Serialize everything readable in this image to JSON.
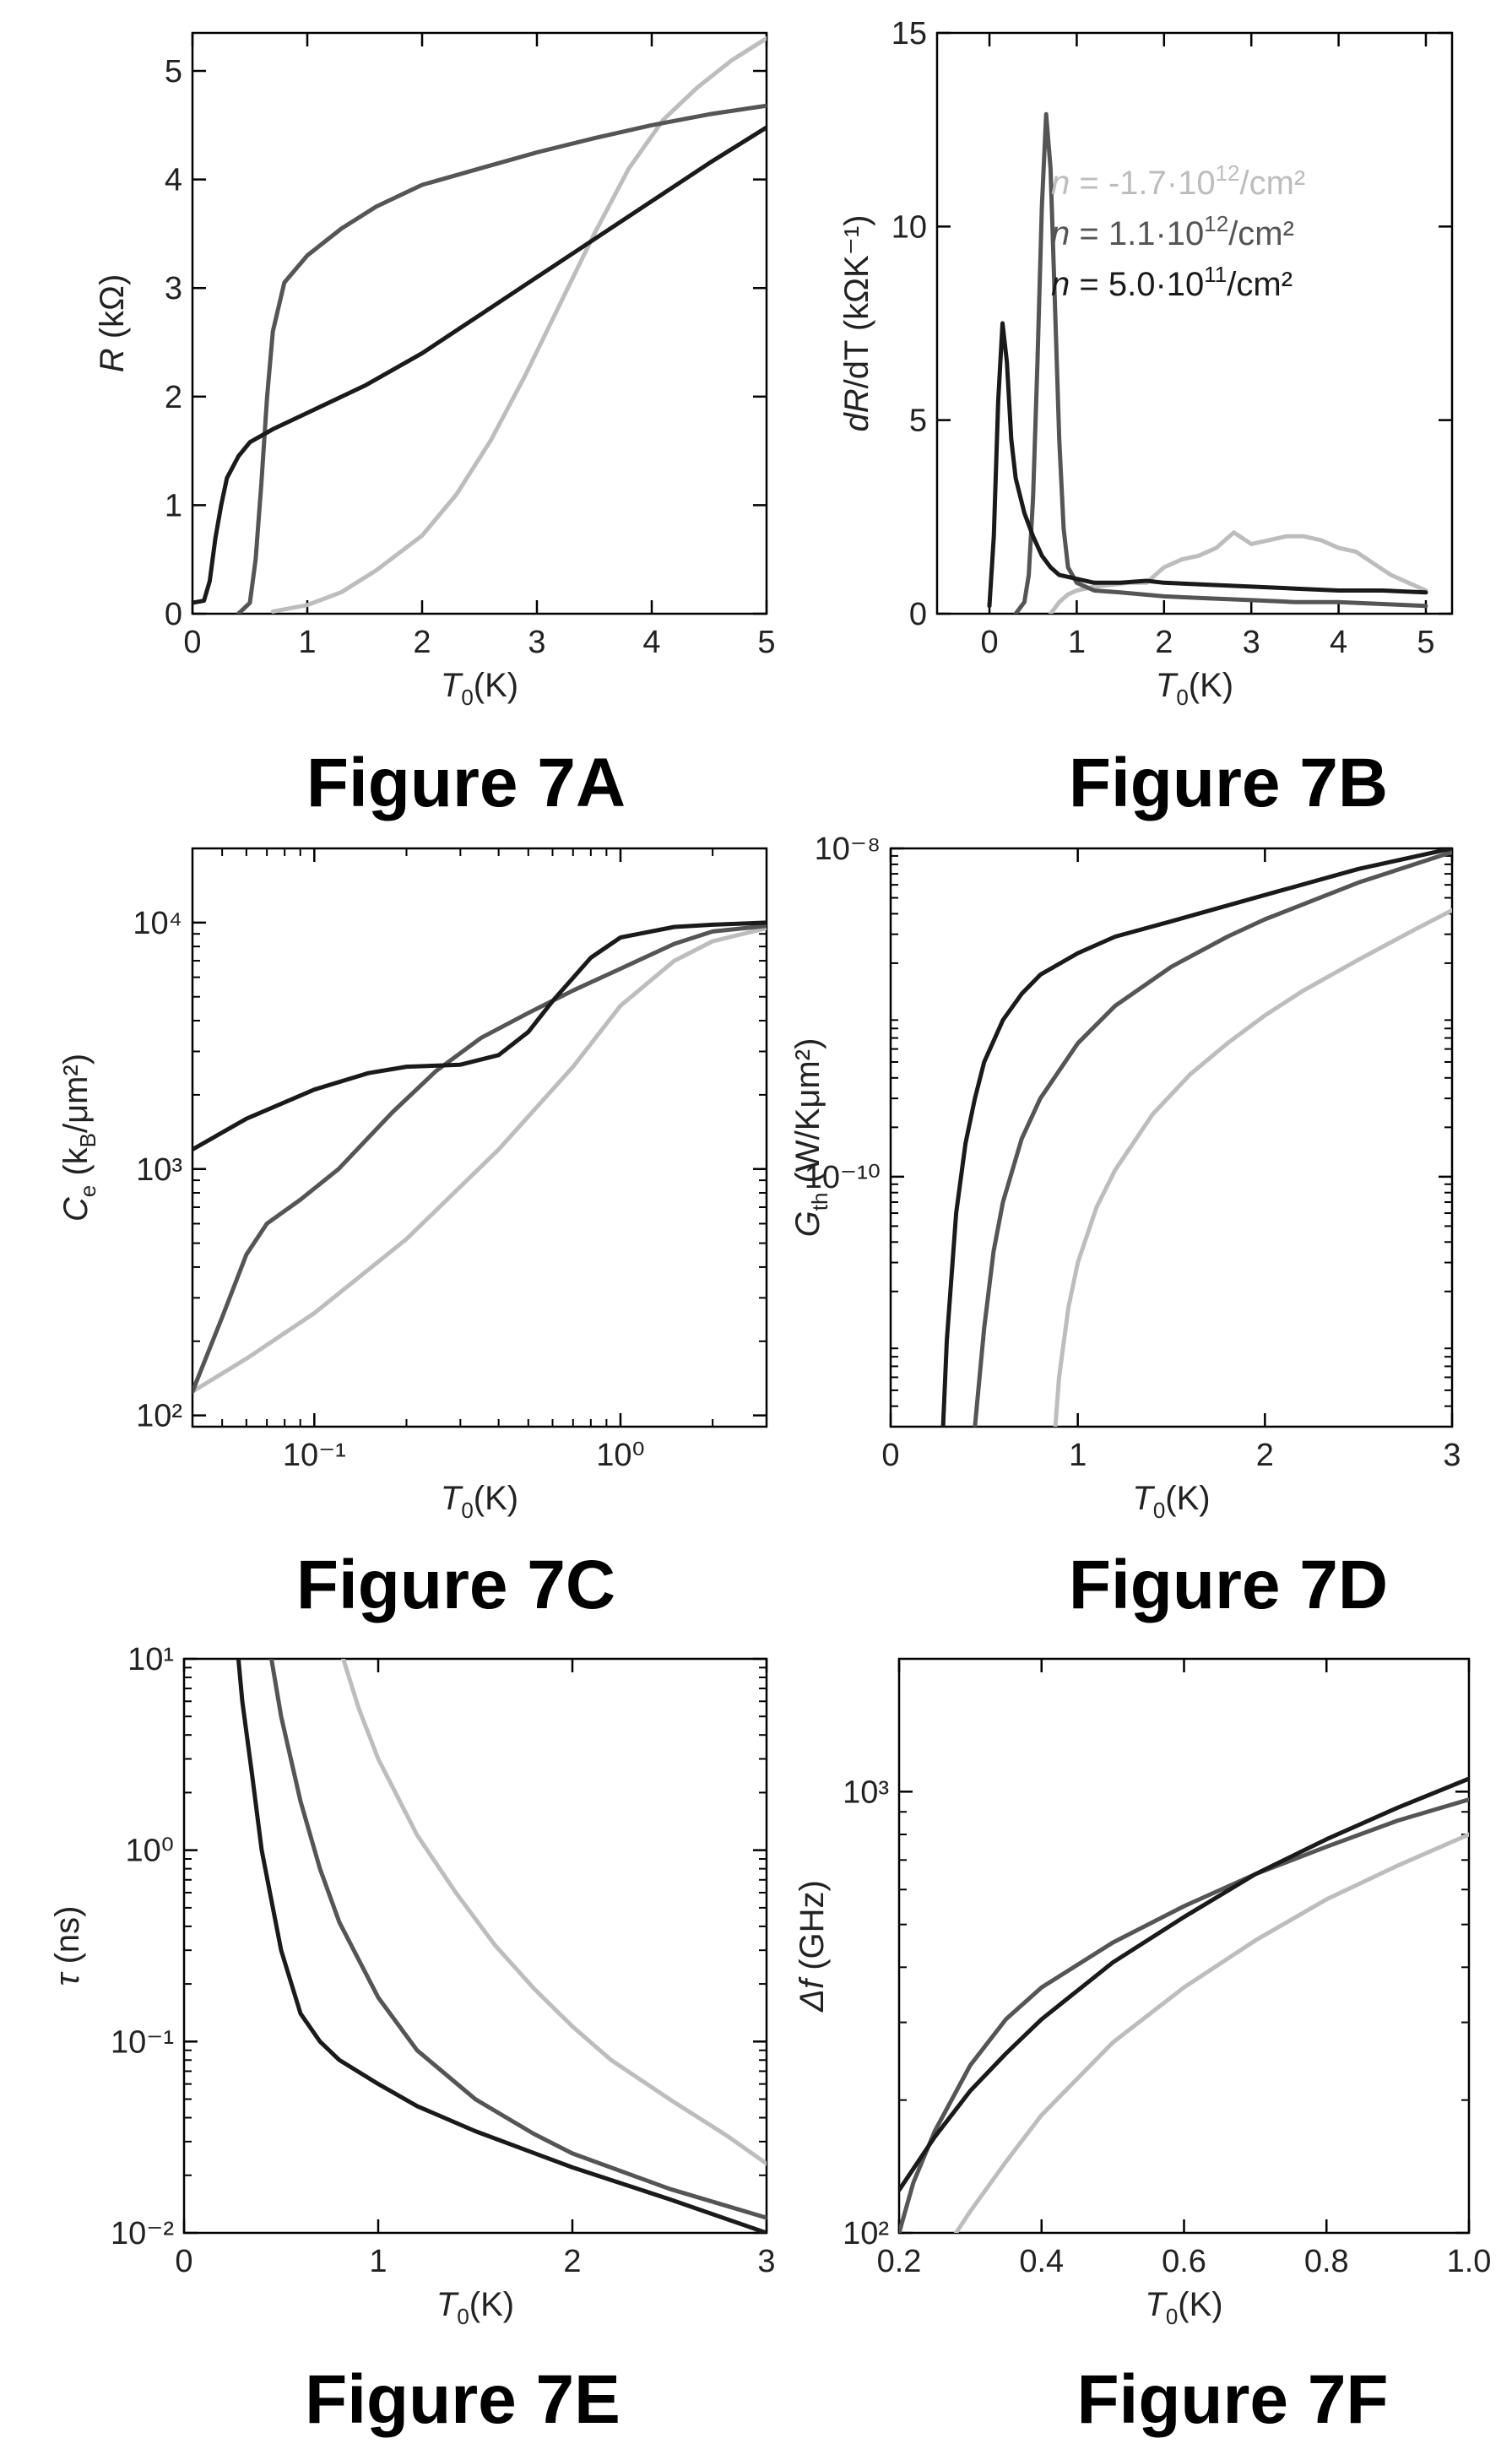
{
  "colors": {
    "black": "#1a1a1a",
    "dark_gray": "#555555",
    "light_gray": "#bdbdbd"
  },
  "chart_data": [
    {
      "panel": "A",
      "type": "line",
      "caption": "Figure 7A",
      "xlabel_var": "T",
      "xlabel_sub": "0",
      "xlabel_unit": "(K)",
      "ylabel_var": "R",
      "ylabel_unit": " (kΩ)",
      "xlim": [
        0,
        5
      ],
      "ylim": [
        0,
        5.35
      ],
      "yscale": "linear",
      "xticks": [
        0,
        1,
        2,
        3,
        4,
        5
      ],
      "xtick_labels": [
        "0",
        "1",
        "2",
        "3",
        "4",
        "5"
      ],
      "yticks": [
        0,
        1,
        2,
        3,
        4,
        5
      ],
      "ytick_labels": [
        "0",
        "1",
        "2",
        "3",
        "4",
        "5"
      ],
      "series": [
        {
          "color": "light_gray",
          "x": [
            0.7,
            0.85,
            1.0,
            1.3,
            1.6,
            2.0,
            2.3,
            2.6,
            2.9,
            3.2,
            3.5,
            3.8,
            4.1,
            4.4,
            4.7,
            5.0
          ],
          "y": [
            0.02,
            0.05,
            0.08,
            0.2,
            0.4,
            0.72,
            1.1,
            1.6,
            2.2,
            2.85,
            3.5,
            4.1,
            4.55,
            4.85,
            5.1,
            5.3
          ]
        },
        {
          "color": "dark_gray",
          "x": [
            0.4,
            0.5,
            0.55,
            0.6,
            0.65,
            0.7,
            0.8,
            1.0,
            1.3,
            1.6,
            2.0,
            2.5,
            3.0,
            3.5,
            4.0,
            4.5,
            5.0
          ],
          "y": [
            0.0,
            0.1,
            0.5,
            1.2,
            2.0,
            2.6,
            3.05,
            3.3,
            3.55,
            3.75,
            3.95,
            4.1,
            4.25,
            4.38,
            4.5,
            4.6,
            4.68
          ]
        },
        {
          "color": "black",
          "x": [
            0.0,
            0.1,
            0.15,
            0.2,
            0.25,
            0.3,
            0.4,
            0.5,
            0.7,
            1.0,
            1.5,
            2.0,
            2.5,
            3.0,
            3.5,
            4.0,
            4.5,
            5.0
          ],
          "y": [
            0.1,
            0.12,
            0.3,
            0.7,
            1.0,
            1.25,
            1.45,
            1.58,
            1.7,
            1.85,
            2.1,
            2.4,
            2.75,
            3.1,
            3.45,
            3.8,
            4.15,
            4.48
          ]
        }
      ]
    },
    {
      "panel": "B",
      "type": "line",
      "caption": "Figure 7B",
      "xlabel_var": "T",
      "xlabel_sub": "0",
      "xlabel_unit": "(K)",
      "ylabel_var": "dR",
      "ylabel_unit": "/dT (kΩK⁻¹)",
      "xlim": [
        -0.6,
        5.3
      ],
      "ylim": [
        0,
        15
      ],
      "yscale": "linear",
      "xticks": [
        0,
        1,
        2,
        3,
        4,
        5
      ],
      "xtick_labels": [
        "0",
        "1",
        "2",
        "3",
        "4",
        "5"
      ],
      "yticks": [
        0,
        5,
        10,
        15
      ],
      "ytick_labels": [
        "0",
        "5",
        "10",
        "15"
      ],
      "legend": [
        {
          "color": "light_gray",
          "label_var": "n",
          "label_value": " = -1.7·10",
          "label_exp": "12",
          "label_unit": "/cm²"
        },
        {
          "color": "dark_gray",
          "label_var": "n",
          "label_value": " =  1.1·10",
          "label_exp": "12",
          "label_unit": "/cm²"
        },
        {
          "color": "black",
          "label_var": "n",
          "label_value": " =  5.0·10",
          "label_exp": "11",
          "label_unit": "/cm²"
        }
      ],
      "series": [
        {
          "color": "light_gray",
          "x": [
            0.7,
            0.8,
            0.9,
            1.0,
            1.2,
            1.4,
            1.6,
            1.8,
            2.0,
            2.2,
            2.4,
            2.6,
            2.8,
            3.0,
            3.2,
            3.4,
            3.6,
            3.8,
            4.0,
            4.2,
            4.4,
            4.6,
            4.8,
            5.0
          ],
          "y": [
            0.0,
            0.3,
            0.5,
            0.6,
            0.7,
            0.75,
            0.8,
            0.8,
            1.2,
            1.4,
            1.5,
            1.7,
            2.1,
            1.8,
            1.9,
            2.0,
            2.0,
            1.9,
            1.7,
            1.6,
            1.3,
            1.0,
            0.8,
            0.6
          ]
        },
        {
          "color": "dark_gray",
          "x": [
            0.3,
            0.4,
            0.45,
            0.5,
            0.55,
            0.6,
            0.65,
            0.7,
            0.75,
            0.8,
            0.85,
            0.9,
            1.0,
            1.2,
            1.5,
            2.0,
            2.5,
            3.0,
            3.5,
            4.0,
            4.5,
            5.0
          ],
          "y": [
            0.0,
            0.3,
            1.0,
            3.0,
            6.5,
            10.5,
            12.9,
            11.5,
            8.0,
            4.5,
            2.2,
            1.2,
            0.8,
            0.6,
            0.55,
            0.45,
            0.4,
            0.35,
            0.3,
            0.3,
            0.25,
            0.2
          ]
        },
        {
          "color": "black",
          "x": [
            0.0,
            0.05,
            0.1,
            0.15,
            0.2,
            0.25,
            0.3,
            0.4,
            0.5,
            0.6,
            0.7,
            0.8,
            1.0,
            1.2,
            1.5,
            1.8,
            2.0,
            2.5,
            3.0,
            3.5,
            4.0,
            4.5,
            5.0
          ],
          "y": [
            0.2,
            2.0,
            5.5,
            7.5,
            6.5,
            4.5,
            3.5,
            2.6,
            2.0,
            1.5,
            1.2,
            1.0,
            0.9,
            0.8,
            0.8,
            0.85,
            0.8,
            0.75,
            0.7,
            0.65,
            0.6,
            0.6,
            0.55
          ]
        }
      ]
    },
    {
      "panel": "C",
      "type": "line",
      "caption": "Figure 7C",
      "xlabel_var": "T",
      "xlabel_sub": "0",
      "xlabel_unit": "(K)",
      "ylabel_var": "C",
      "ylabel_sub": "e",
      "ylabel_unit": " (k",
      "ylabel_unit_sub": "B",
      "ylabel_unit_tail": "/μm²)",
      "xlim": [
        0.04,
        3
      ],
      "ylim": [
        90,
        20000
      ],
      "xscale": "log",
      "yscale": "log",
      "xticks": [
        0.1,
        1
      ],
      "xtick_labels": [
        "10⁻¹",
        "10⁰"
      ],
      "yticks": [
        100,
        1000,
        10000
      ],
      "ytick_labels": [
        "10²",
        "10³",
        "10⁴"
      ],
      "series": [
        {
          "color": "light_gray",
          "x": [
            0.04,
            0.06,
            0.1,
            0.2,
            0.4,
            0.7,
            1.0,
            1.5,
            2.0,
            3.0
          ],
          "y": [
            125,
            170,
            260,
            520,
            1200,
            2600,
            4600,
            7000,
            8400,
            9500
          ]
        },
        {
          "color": "dark_gray",
          "x": [
            0.04,
            0.05,
            0.06,
            0.07,
            0.09,
            0.12,
            0.18,
            0.25,
            0.35,
            0.5,
            0.7,
            1.0,
            1.5,
            2.0,
            3.0
          ],
          "y": [
            125,
            250,
            450,
            600,
            750,
            1000,
            1700,
            2500,
            3400,
            4300,
            5300,
            6500,
            8200,
            9200,
            9700
          ]
        },
        {
          "color": "black",
          "x": [
            0.04,
            0.06,
            0.1,
            0.15,
            0.2,
            0.3,
            0.4,
            0.5,
            0.6,
            0.8,
            1.0,
            1.5,
            2.0,
            3.0
          ],
          "y": [
            1200,
            1600,
            2100,
            2450,
            2600,
            2650,
            2900,
            3600,
            4800,
            7200,
            8700,
            9600,
            9800,
            10000
          ]
        }
      ]
    },
    {
      "panel": "D",
      "type": "line",
      "caption": "Figure 7D",
      "xlabel_var": "T",
      "xlabel_sub": "0",
      "xlabel_unit": "(K)",
      "ylabel_var": "G",
      "ylabel_sub": "th",
      "ylabel_unit": " (W/Kμm²)",
      "xlim": [
        0,
        3
      ],
      "ylim": [
        3e-12,
        1e-08
      ],
      "yscale": "log",
      "xticks": [
        0,
        1,
        2,
        3
      ],
      "xtick_labels": [
        "0",
        "1",
        "2",
        "3"
      ],
      "yticks": [
        1e-10,
        1e-08
      ],
      "ytick_labels": [
        "10⁻¹⁰",
        "10⁻⁸"
      ],
      "series": [
        {
          "color": "light_gray",
          "x": [
            0.88,
            0.9,
            0.95,
            1.0,
            1.1,
            1.2,
            1.4,
            1.6,
            1.8,
            2.0,
            2.2,
            2.5,
            2.8,
            3.0
          ],
          "y": [
            3e-12,
            6e-12,
            1.6e-11,
            3e-11,
            6.5e-11,
            1.1e-10,
            2.4e-10,
            4.2e-10,
            6.5e-10,
            9.6e-10,
            1.35e-09,
            2.1e-09,
            3.2e-09,
            4.2e-09
          ]
        },
        {
          "color": "dark_gray",
          "x": [
            0.45,
            0.5,
            0.55,
            0.6,
            0.7,
            0.8,
            1.0,
            1.2,
            1.5,
            1.8,
            2.0,
            2.5,
            3.0
          ],
          "y": [
            3e-12,
            1.2e-11,
            3.5e-11,
            7e-11,
            1.7e-10,
            3e-10,
            6.5e-10,
            1.1e-09,
            1.9e-09,
            2.9e-09,
            3.7e-09,
            6.2e-09,
            9.5e-09
          ]
        },
        {
          "color": "black",
          "x": [
            0.28,
            0.3,
            0.35,
            0.4,
            0.45,
            0.5,
            0.6,
            0.7,
            0.8,
            1.0,
            1.2,
            1.5,
            2.0,
            2.5,
            3.0
          ],
          "y": [
            3e-12,
            1e-11,
            6e-11,
            1.6e-10,
            3e-10,
            5e-10,
            9e-10,
            1.3e-09,
            1.7e-09,
            2.3e-09,
            2.9e-09,
            3.6e-09,
            5.2e-09,
            7.5e-09,
            1e-08
          ]
        }
      ]
    },
    {
      "panel": "E",
      "type": "line",
      "caption": "Figure 7E",
      "xlabel_var": "T",
      "xlabel_sub": "0",
      "xlabel_unit": "(K)",
      "ylabel_var": "τ",
      "ylabel_unit": " (ns)",
      "xlim": [
        0,
        3
      ],
      "ylim": [
        0.01,
        10
      ],
      "yscale": "log",
      "xticks": [
        0,
        1,
        2,
        3
      ],
      "xtick_labels": [
        "0",
        "1",
        "2",
        "3"
      ],
      "yticks": [
        0.01,
        0.1,
        1,
        10
      ],
      "ytick_labels": [
        "10⁻²",
        "10⁻¹",
        "10⁰",
        "10¹"
      ],
      "series": [
        {
          "color": "light_gray",
          "x": [
            0.82,
            0.9,
            1.0,
            1.2,
            1.4,
            1.6,
            1.8,
            2.0,
            2.2,
            2.5,
            2.8,
            3.0
          ],
          "y": [
            10,
            5.5,
            3.0,
            1.2,
            0.6,
            0.32,
            0.19,
            0.12,
            0.08,
            0.05,
            0.032,
            0.023
          ]
        },
        {
          "color": "dark_gray",
          "x": [
            0.45,
            0.5,
            0.6,
            0.7,
            0.8,
            1.0,
            1.2,
            1.5,
            1.8,
            2.0,
            2.5,
            3.0
          ],
          "y": [
            10,
            5.0,
            1.8,
            0.8,
            0.42,
            0.17,
            0.09,
            0.05,
            0.033,
            0.026,
            0.017,
            0.012
          ]
        },
        {
          "color": "black",
          "x": [
            0.28,
            0.3,
            0.35,
            0.4,
            0.5,
            0.6,
            0.7,
            0.8,
            1.0,
            1.2,
            1.5,
            2.0,
            2.5,
            3.0
          ],
          "y": [
            10,
            6.0,
            2.5,
            1.0,
            0.3,
            0.14,
            0.1,
            0.08,
            0.06,
            0.046,
            0.034,
            0.022,
            0.015,
            0.01
          ]
        }
      ]
    },
    {
      "panel": "F",
      "type": "line",
      "caption": "Figure 7F",
      "xlabel_var": "T",
      "xlabel_sub": "0",
      "xlabel_unit": "(K)",
      "ylabel_var": "Δf",
      "ylabel_unit": " (GHz)",
      "xlim": [
        0.2,
        1.0
      ],
      "ylim": [
        100,
        2000
      ],
      "yscale": "log",
      "xticks": [
        0.2,
        0.4,
        0.6,
        0.8,
        1.0
      ],
      "xtick_labels": [
        "0.2",
        "0.4",
        "0.6",
        "0.8",
        "1.0"
      ],
      "yticks": [
        100,
        1000
      ],
      "ytick_labels": [
        "10²",
        "10³"
      ],
      "series": [
        {
          "color": "light_gray",
          "x": [
            0.28,
            0.3,
            0.35,
            0.4,
            0.5,
            0.6,
            0.7,
            0.8,
            0.9,
            1.0
          ],
          "y": [
            100,
            112,
            145,
            185,
            270,
            360,
            460,
            570,
            680,
            800
          ]
        },
        {
          "color": "dark_gray",
          "x": [
            0.2,
            0.22,
            0.25,
            0.3,
            0.35,
            0.4,
            0.5,
            0.6,
            0.7,
            0.8,
            0.9,
            1.0
          ],
          "y": [
            100,
            130,
            170,
            240,
            305,
            360,
            455,
            550,
            650,
            750,
            860,
            960
          ]
        },
        {
          "color": "black",
          "x": [
            0.2,
            0.25,
            0.3,
            0.35,
            0.4,
            0.5,
            0.6,
            0.7,
            0.8,
            0.9,
            1.0
          ],
          "y": [
            125,
            165,
            210,
            255,
            305,
            410,
            520,
            650,
            780,
            920,
            1070
          ]
        }
      ]
    }
  ]
}
